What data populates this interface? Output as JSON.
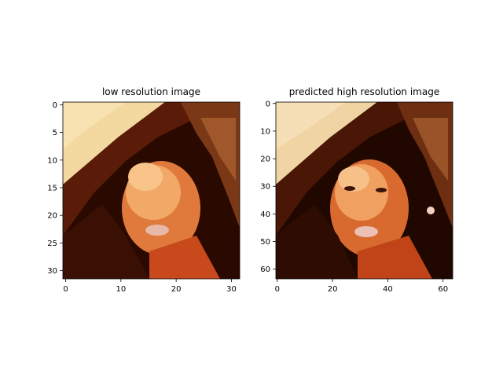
{
  "chart_data": [
    {
      "type": "heatmap",
      "title": "low resolution image",
      "xlabel": "",
      "ylabel": "",
      "xlim": [
        -0.5,
        31.5
      ],
      "ylim": [
        31.5,
        -0.5
      ],
      "x_ticks": [
        0,
        10,
        20,
        30
      ],
      "y_ticks": [
        0,
        5,
        10,
        15,
        20,
        25,
        30
      ],
      "grid": false,
      "legend": "none"
    },
    {
      "type": "heatmap",
      "title": "predicted high resolution image",
      "xlabel": "",
      "ylabel": "",
      "xlim": [
        -0.5,
        63.5
      ],
      "ylim": [
        63.5,
        -0.5
      ],
      "x_ticks": [
        0,
        20,
        40,
        60
      ],
      "y_ticks": [
        0,
        10,
        20,
        30,
        40,
        50,
        60
      ],
      "grid": false,
      "legend": "none"
    }
  ]
}
